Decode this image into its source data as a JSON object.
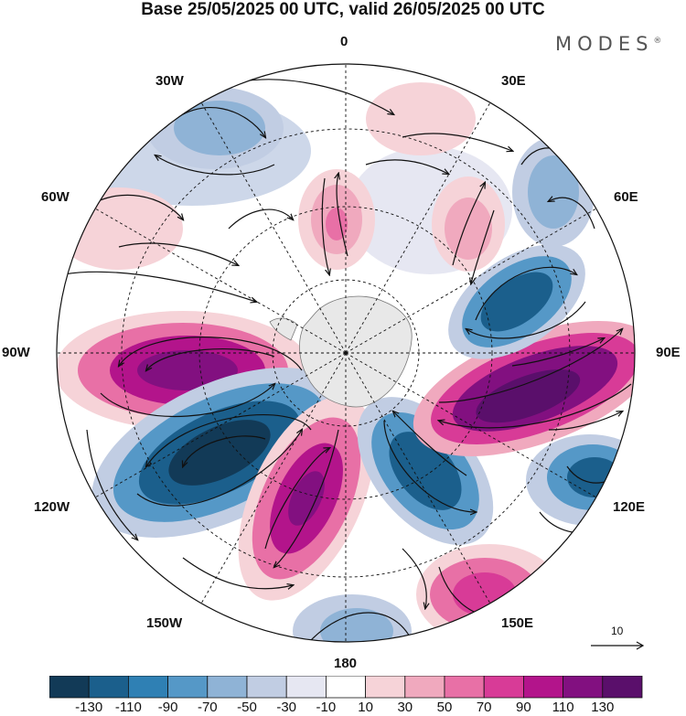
{
  "title": "Base 25/05/2025 00 UTC, valid 26/05/2025 00 UTC",
  "logo": {
    "text": "MODES",
    "mark": "®"
  },
  "longitude_labels": {
    "lon_0": "0",
    "lon_30e": "30E",
    "lon_60e": "60E",
    "lon_90e": "90E",
    "lon_120e": "120E",
    "lon_150e": "150E",
    "lon_180": "180",
    "lon_150w": "150W",
    "lon_120w": "120W",
    "lon_90w": "90W",
    "lon_60w": "60W",
    "lon_30w": "30W"
  },
  "reference_vector": {
    "label": "10"
  },
  "colorbar": {
    "ticks": [
      "-130",
      "-110",
      "-90",
      "-70",
      "-50",
      "-30",
      "-10",
      "10",
      "30",
      "50",
      "70",
      "90",
      "110",
      "130"
    ],
    "colors": [
      "#123a57",
      "#1b5f8c",
      "#2f80b4",
      "#5598c7",
      "#8fb3d6",
      "#c1cde3",
      "#e6e7f2",
      "#ffffff",
      "#f6d3d8",
      "#f0a9be",
      "#e870a6",
      "#d83b97",
      "#b3148b",
      "#821080",
      "#5a0f6b"
    ]
  },
  "map": {
    "projection": "south polar stereographic",
    "field": "anomaly with streamlines",
    "anomaly_features": [
      {
        "name": "positive-anomaly-90w",
        "value": 120,
        "color": "#7b1b86"
      },
      {
        "name": "negative-anomaly-120w",
        "value": -135,
        "color": "#123a57"
      },
      {
        "name": "positive-anomaly-150w",
        "value": 115,
        "color": "#821080"
      },
      {
        "name": "negative-anomaly-170e",
        "value": -110,
        "color": "#1b5f8c"
      },
      {
        "name": "positive-anomaly-100e",
        "value": 125,
        "color": "#5a0f6b"
      },
      {
        "name": "negative-anomaly-60e",
        "value": -105,
        "color": "#1b5f8c"
      },
      {
        "name": "negative-anomaly-120e",
        "value": -110,
        "color": "#1b5f8c"
      },
      {
        "name": "positive-anomaly-140e",
        "value": 80,
        "color": "#d83b97"
      },
      {
        "name": "positive-anomaly-15w",
        "value": 60,
        "color": "#e870a6"
      },
      {
        "name": "positive-anomaly-30e",
        "value": 55,
        "color": "#f0a9be"
      },
      {
        "name": "negative-anomaly-30w",
        "value": -50,
        "color": "#8fb3d6"
      },
      {
        "name": "negative-anomaly-60e-north",
        "value": -50,
        "color": "#8fb3d6"
      },
      {
        "name": "negative-anomaly-170w-edge",
        "value": -50,
        "color": "#8fb3d6"
      }
    ]
  }
}
